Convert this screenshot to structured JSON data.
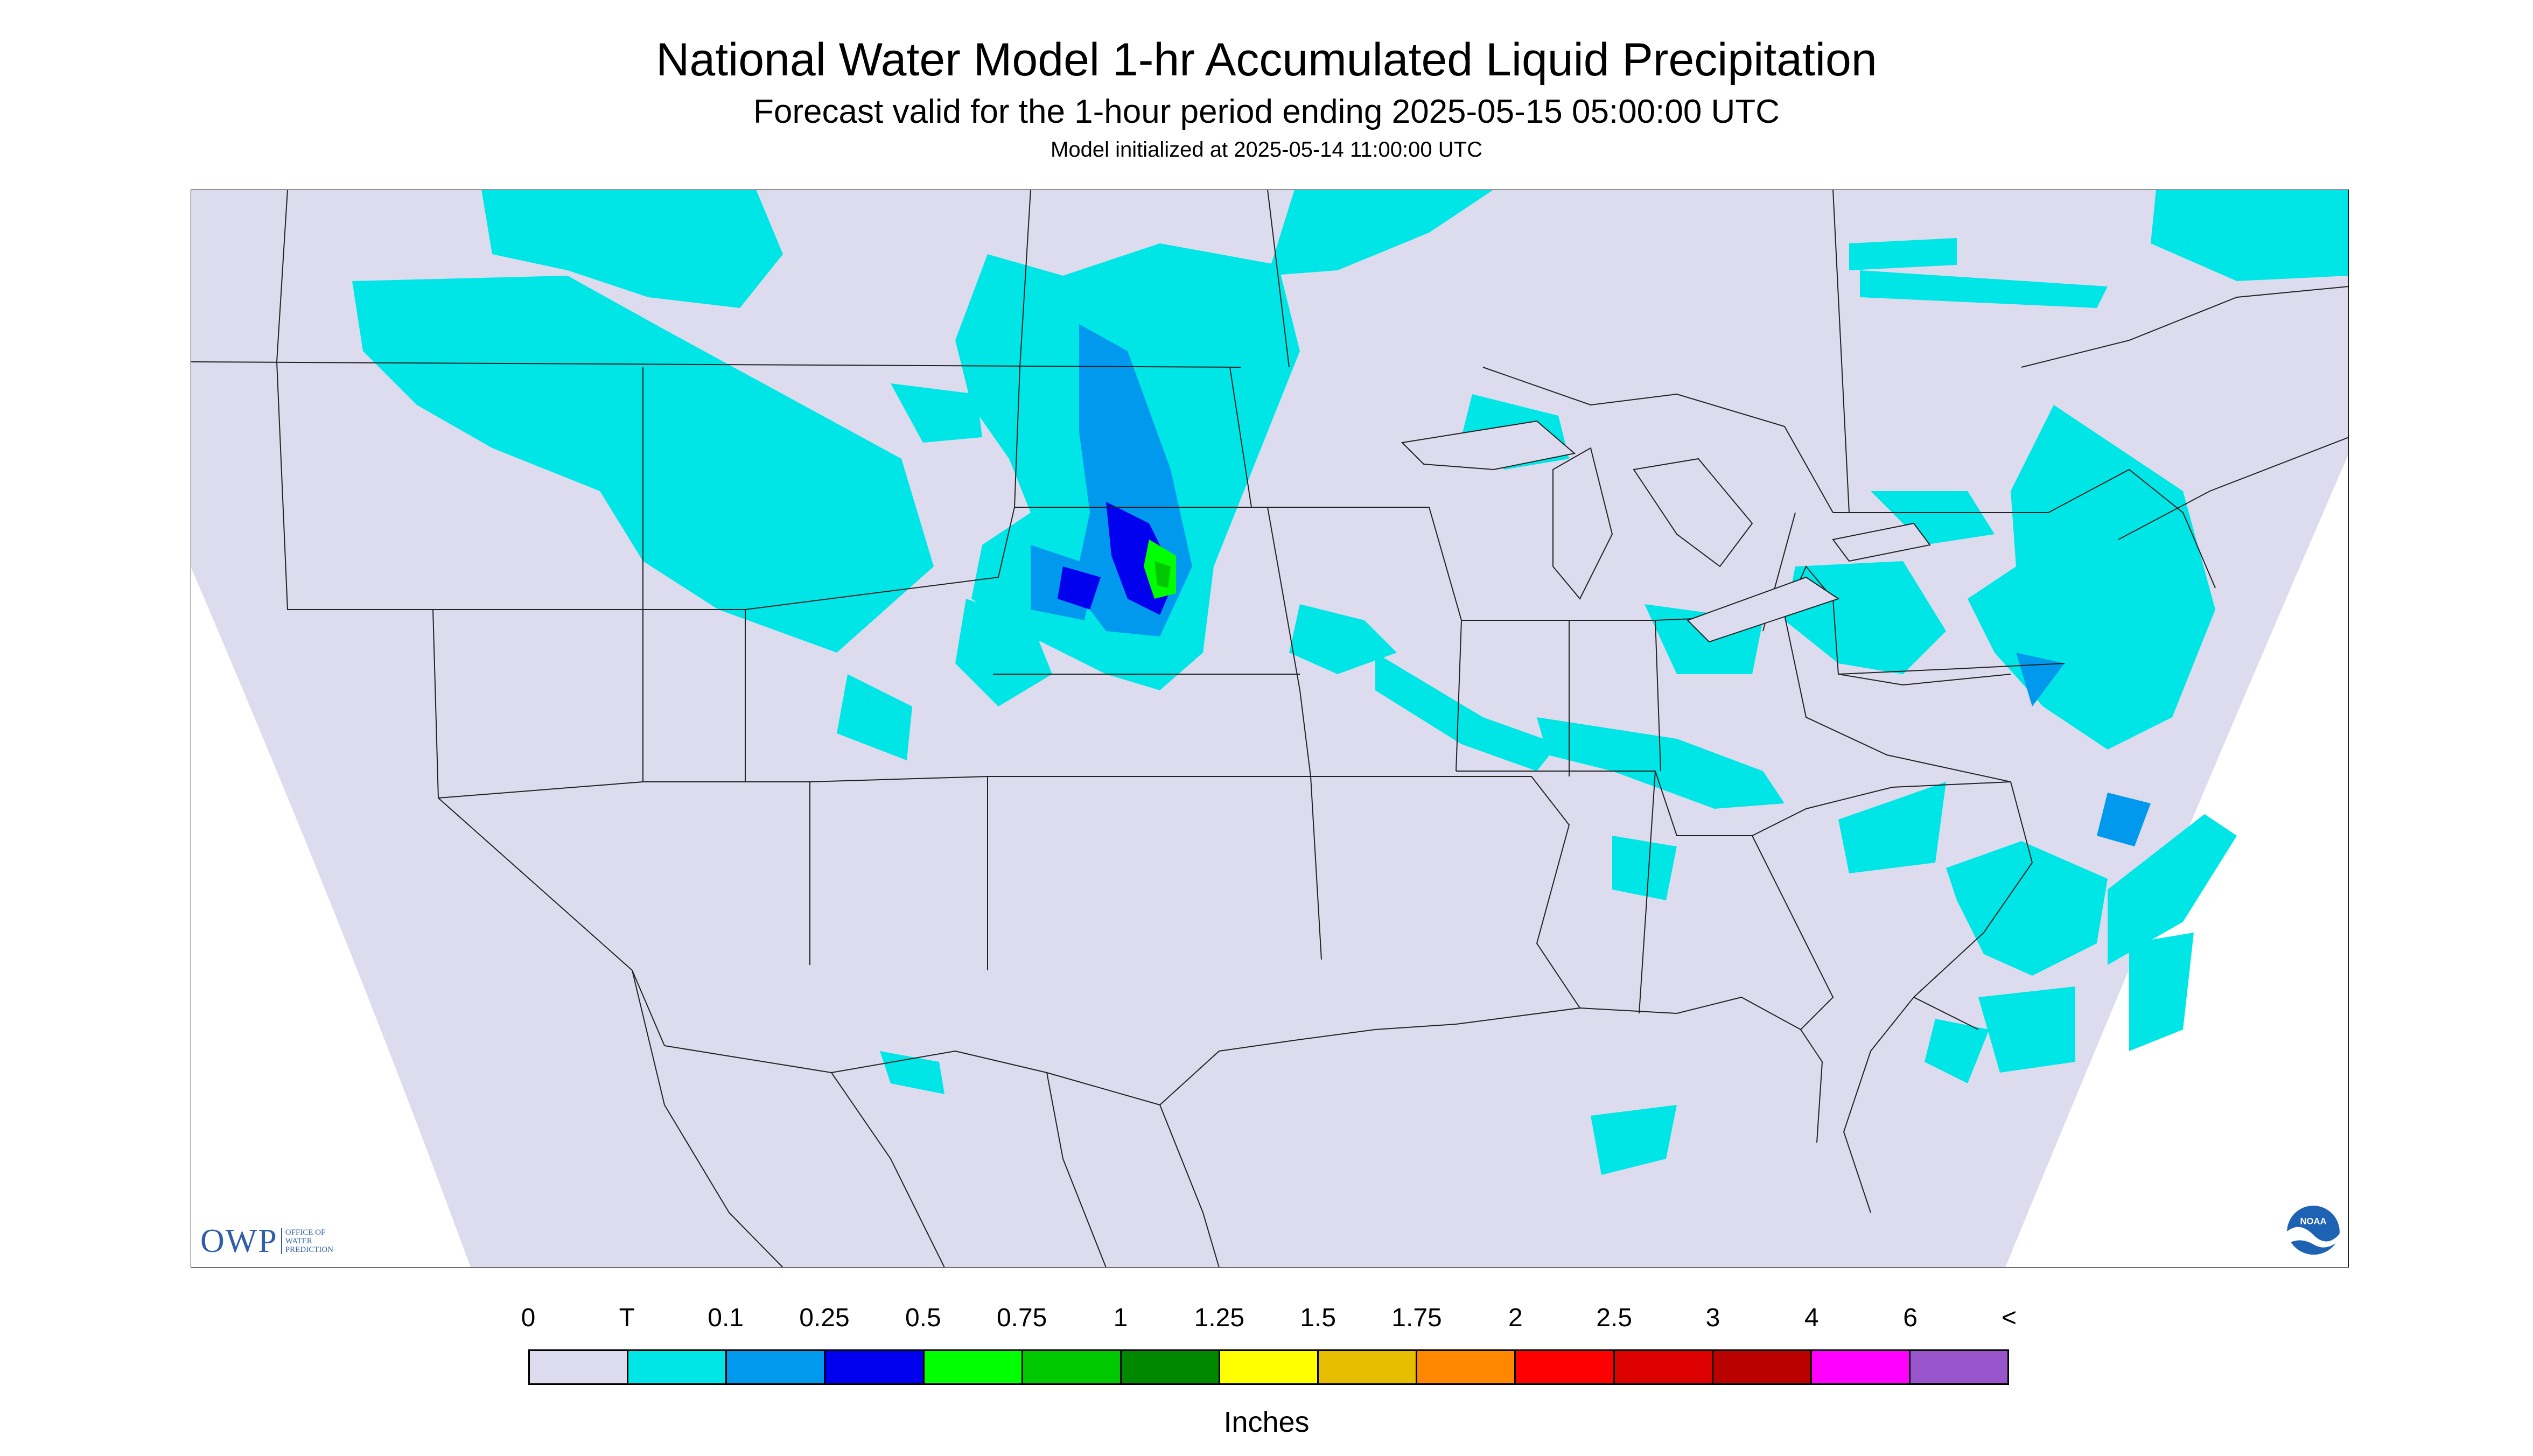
{
  "header": {
    "title": "National Water Model 1-hr Accumulated Liquid Precipitation",
    "subtitle": "Forecast valid for the 1-hour period ending 2025-05-15 05:00:00 UTC",
    "init_note": "Model initialized at 2025-05-14 11:00:00 UTC"
  },
  "colors": {
    "background": "#dcdcee",
    "outside": "#ffffff",
    "trace": "#00e6e6",
    "p01": "#0099ee",
    "p025": "#0000ee",
    "p05": "#00ff00",
    "p075": "#00c800",
    "border_lines": "#222222"
  },
  "legend": {
    "labels": [
      "0",
      "T",
      "0.1",
      "0.25",
      "0.5",
      "0.75",
      "1",
      "1.25",
      "1.5",
      "1.75",
      "2",
      "2.5",
      "3",
      "4",
      "6",
      "<"
    ],
    "colors": [
      "#dcdcee",
      "#00e6e6",
      "#0099ee",
      "#0000ee",
      "#00ff00",
      "#00c800",
      "#008800",
      "#ffff00",
      "#e6be00",
      "#ff8800",
      "#ff0000",
      "#dd0000",
      "#bb0000",
      "#ff00ff",
      "#9955cc"
    ],
    "units": "Inches"
  },
  "logos": {
    "owp_text": "OWP",
    "owp_subtext": "OFFICE OF WATER PREDICTION",
    "noaa_text": "NOAA"
  }
}
